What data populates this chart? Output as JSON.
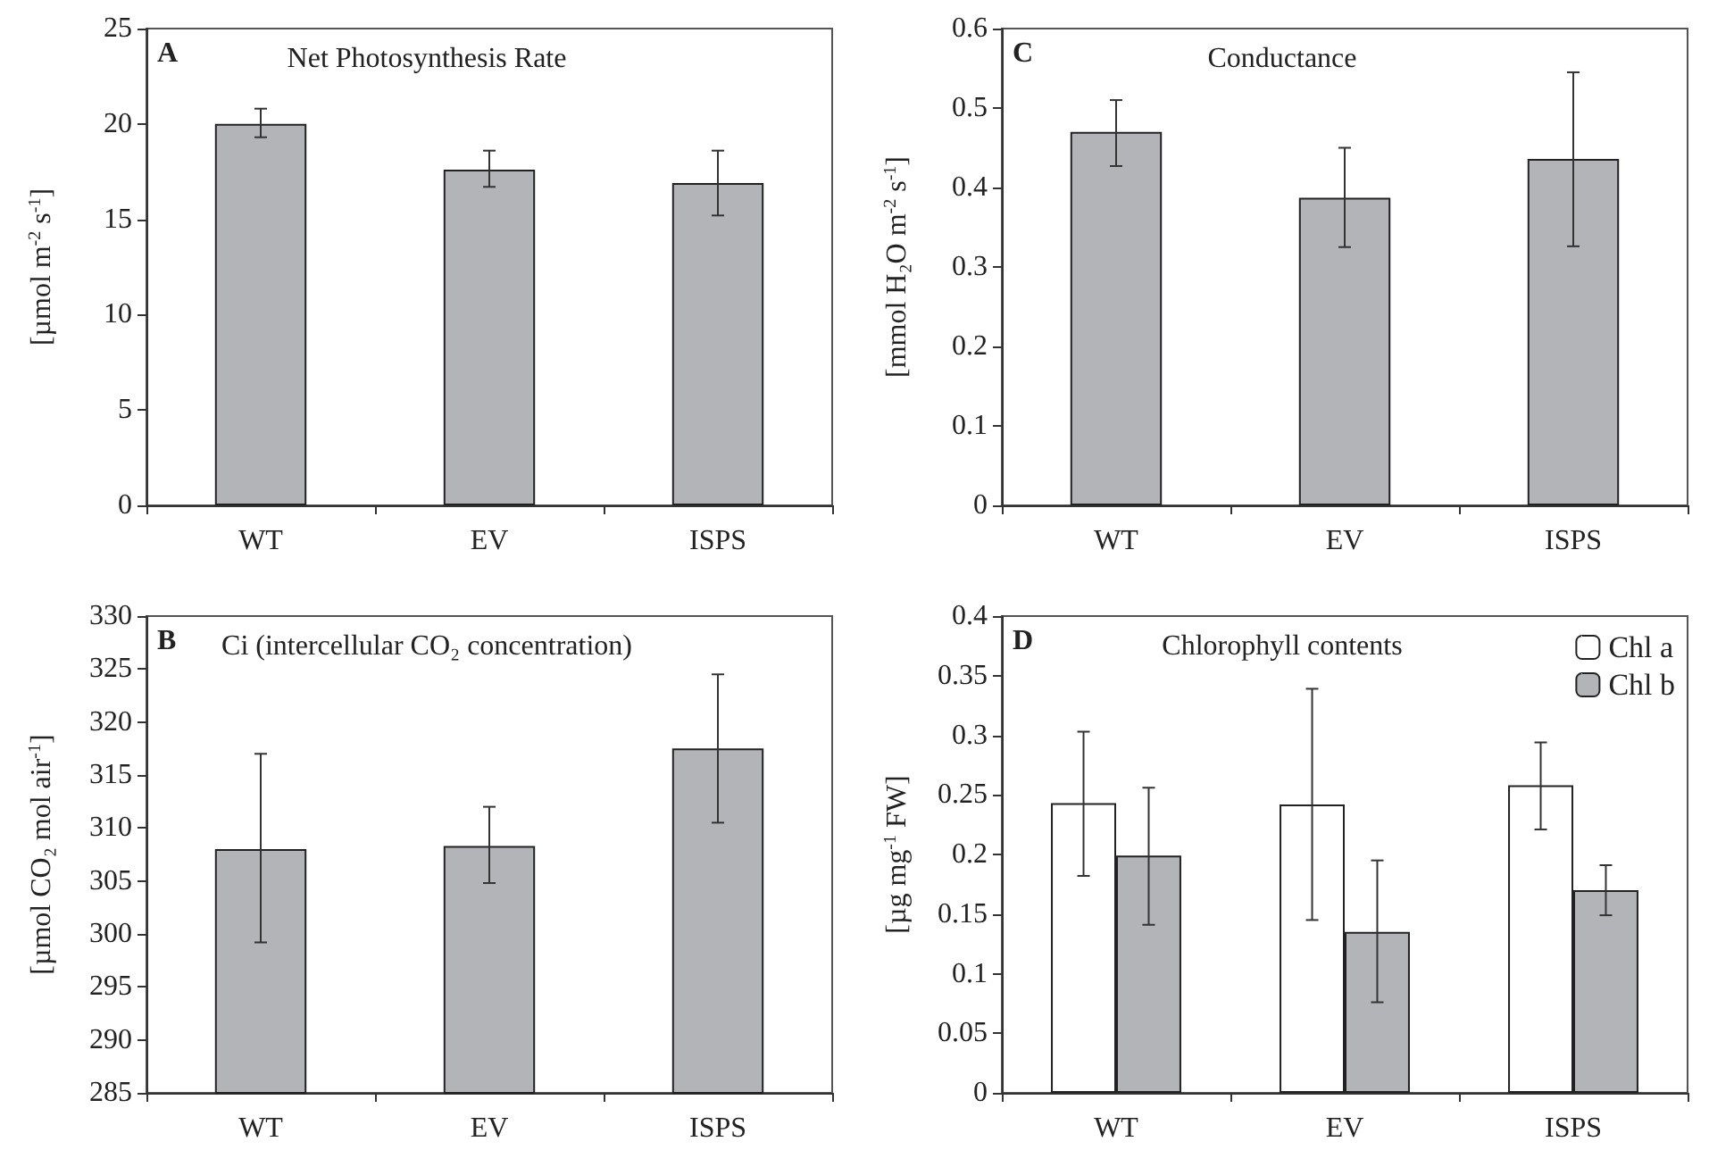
{
  "chart_data": [
    {
      "type": "bar",
      "title": "Net Photosynthesis Rate",
      "annotations": [
        "A"
      ],
      "ylabel": "[µmol m$^{-2}$ s$^{-1}$]",
      "categories": [
        "WT",
        "EV",
        "ISPS"
      ],
      "values": [
        20.0,
        17.6,
        16.9
      ],
      "errors": [
        [
          19.3,
          20.8
        ],
        [
          16.7,
          18.6
        ],
        [
          15.2,
          18.6
        ]
      ],
      "color": "#b3b4b8",
      "ylim": [
        0,
        25
      ],
      "yticks": [
        0,
        5,
        10,
        15,
        20,
        25
      ]
    },
    {
      "type": "bar",
      "title": "Conductance",
      "annotations": [
        "C"
      ],
      "ylabel": "[mmol H₂O m$^{-2}$ s$^{-1}$]",
      "categories": [
        "WT",
        "EV",
        "ISPS"
      ],
      "values": [
        0.47,
        0.387,
        0.436
      ],
      "errors": [
        [
          0.427,
          0.51
        ],
        [
          0.325,
          0.45
        ],
        [
          0.326,
          0.545
        ]
      ],
      "color": "#b3b4b8",
      "ylim": [
        0,
        0.6
      ],
      "yticks": [
        0,
        0.1,
        0.2,
        0.3,
        0.4,
        0.5,
        0.6
      ]
    },
    {
      "type": "bar",
      "title": "Ci (intercellular CO₂ concentration)",
      "annotations": [
        "B"
      ],
      "ylabel": "[µmol CO₂ mol air$^{-1}$]",
      "categories": [
        "WT",
        "EV",
        "ISPS"
      ],
      "values": [
        308.0,
        308.3,
        317.5
      ],
      "errors": [
        [
          299.2,
          317.0
        ],
        [
          304.8,
          312.0
        ],
        [
          310.5,
          324.5
        ]
      ],
      "color": "#b3b4b8",
      "ylim": [
        285,
        330
      ],
      "yticks": [
        285,
        290,
        295,
        300,
        305,
        310,
        315,
        320,
        325,
        330
      ]
    },
    {
      "type": "bar",
      "title": "Chlorophyll contents",
      "annotations": [
        "D"
      ],
      "ylabel": "[µg mg$^{-1}$ FW]",
      "categories": [
        "WT",
        "EV",
        "ISPS"
      ],
      "legend": "top right",
      "series": [
        {
          "name": "Chl a",
          "color": "#ffffff",
          "values": [
            0.243,
            0.242,
            0.258
          ],
          "errors": [
            [
              0.182,
              0.303
            ],
            [
              0.145,
              0.339
            ],
            [
              0.221,
              0.294
            ]
          ]
        },
        {
          "name": "Chl b",
          "color": "#b3b4b8",
          "values": [
            0.199,
            0.135,
            0.17
          ],
          "errors": [
            [
              0.141,
              0.256
            ],
            [
              0.076,
              0.195
            ],
            [
              0.149,
              0.191
            ]
          ]
        }
      ],
      "ylim": [
        0,
        0.4
      ],
      "yticks": [
        0,
        0.05,
        0.1,
        0.15,
        0.2,
        0.25,
        0.3,
        0.35,
        0.4
      ]
    }
  ]
}
